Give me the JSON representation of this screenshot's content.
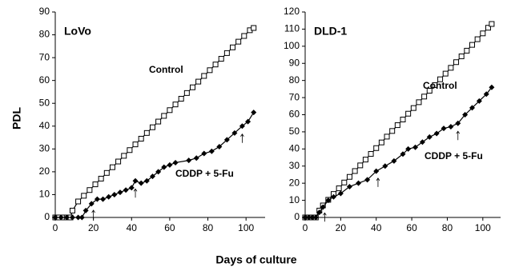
{
  "ylabel": "PDL",
  "xlabel": "Days of culture",
  "chart_data": [
    {
      "type": "line",
      "title": "LoVo",
      "xlim": [
        0,
        110
      ],
      "ylim": [
        0,
        90
      ],
      "xticks": [
        0,
        20,
        40,
        60,
        80,
        100
      ],
      "yticks": [
        0,
        10,
        20,
        30,
        40,
        50,
        60,
        70,
        80,
        90
      ],
      "arrows_x": [
        20,
        42,
        98
      ],
      "series": [
        {
          "name": "Control",
          "marker": "square",
          "color": "#000000",
          "x": [
            0,
            2,
            4,
            6,
            8,
            9,
            12,
            15,
            18,
            21,
            24,
            27,
            30,
            33,
            36,
            39,
            42,
            45,
            48,
            51,
            54,
            57,
            60,
            63,
            66,
            69,
            72,
            75,
            78,
            81,
            84,
            87,
            90,
            93,
            96,
            99,
            102,
            104
          ],
          "values": [
            0,
            0,
            0,
            0,
            0,
            3,
            7,
            9.5,
            12,
            14.5,
            17,
            19.5,
            22,
            24.5,
            27,
            29.5,
            32,
            34.5,
            37,
            39.5,
            42,
            44.5,
            47,
            49.5,
            52,
            54.5,
            57,
            59.5,
            62,
            64.5,
            67,
            69.5,
            72,
            74.5,
            77,
            79.5,
            82,
            83
          ]
        },
        {
          "name": "CDDP + 5-Fu",
          "marker": "diamond",
          "color": "#000000",
          "x": [
            0,
            3,
            6,
            9,
            12,
            14,
            16,
            19,
            22,
            25,
            28,
            31,
            34,
            37,
            40,
            42,
            45,
            48,
            51,
            54,
            57,
            60,
            63,
            70,
            74,
            78,
            82,
            86,
            90,
            94,
            98,
            101,
            104
          ],
          "values": [
            0,
            0,
            0,
            0,
            0,
            0,
            3,
            6,
            8,
            8,
            9,
            10,
            11,
            12,
            13,
            16,
            15,
            16,
            18,
            20,
            22,
            23,
            24,
            25,
            26,
            28,
            29,
            31,
            34,
            37,
            40,
            42,
            46
          ]
        }
      ]
    },
    {
      "type": "line",
      "title": "DLD-1",
      "xlim": [
        0,
        110
      ],
      "ylim": [
        0,
        120
      ],
      "xticks": [
        0,
        20,
        40,
        60,
        80,
        100
      ],
      "yticks": [
        0,
        10,
        20,
        30,
        40,
        50,
        60,
        70,
        80,
        90,
        100,
        110,
        120
      ],
      "arrows_x": [
        11,
        41,
        86
      ],
      "series": [
        {
          "name": "Control",
          "marker": "square",
          "color": "#000000",
          "x": [
            0,
            2,
            4,
            6,
            8,
            10,
            13,
            16,
            19,
            22,
            25,
            28,
            31,
            34,
            37,
            40,
            43,
            46,
            49,
            52,
            55,
            58,
            61,
            64,
            67,
            70,
            73,
            76,
            79,
            82,
            85,
            88,
            91,
            94,
            97,
            100,
            103,
            105
          ],
          "values": [
            0,
            0,
            0,
            0,
            4,
            7,
            10.3,
            13.7,
            17,
            20.4,
            23.7,
            27.1,
            30.4,
            33.8,
            37.1,
            40.5,
            43.8,
            47.2,
            50.5,
            53.9,
            57.2,
            60.6,
            63.9,
            67.3,
            70.6,
            74,
            77.3,
            80.7,
            84,
            87.4,
            90.7,
            94.1,
            97.4,
            100.8,
            104.1,
            107.5,
            110.8,
            113
          ]
        },
        {
          "name": "CDDP + 5-Fu",
          "marker": "diamond",
          "color": "#000000",
          "x": [
            0,
            2,
            4,
            6,
            8,
            10,
            13,
            16,
            20,
            25,
            30,
            35,
            40,
            45,
            50,
            55,
            58,
            62,
            66,
            70,
            74,
            78,
            82,
            86,
            90,
            94,
            98,
            102,
            105
          ],
          "values": [
            0,
            0,
            0,
            0,
            3,
            6,
            10,
            12,
            14,
            18,
            20,
            22,
            27,
            30,
            33,
            37,
            40,
            41,
            44,
            47,
            49,
            52,
            53,
            55,
            60,
            64,
            68,
            72,
            76
          ]
        }
      ]
    }
  ]
}
